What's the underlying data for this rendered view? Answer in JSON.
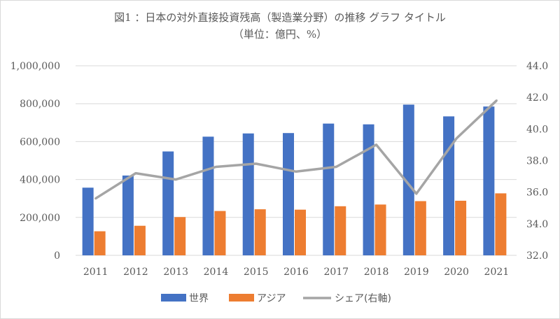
{
  "chart_data": {
    "type": "bar",
    "title": "図1 ：日本の対外直接投資残高（製造業分野）の推移 グラフ タイトル",
    "subtitle": "（単位：億円、%）",
    "categories": [
      "2011",
      "2012",
      "2013",
      "2014",
      "2015",
      "2016",
      "2017",
      "2018",
      "2019",
      "2020",
      "2021"
    ],
    "series": [
      {
        "name": "世界",
        "kind": "bar",
        "axis": "left",
        "color": "#4472c4",
        "values": [
          357000,
          421000,
          548000,
          626000,
          643000,
          645000,
          695000,
          691000,
          795000,
          733000,
          785000
        ]
      },
      {
        "name": "アジア",
        "kind": "bar",
        "axis": "left",
        "color": "#ed7d31",
        "values": [
          127000,
          156000,
          202000,
          234000,
          243000,
          241000,
          259000,
          268000,
          286000,
          288000,
          327000
        ]
      },
      {
        "name": "シェア(右軸)",
        "kind": "line",
        "axis": "right",
        "color": "#a5a5a5",
        "values": [
          35.6,
          37.2,
          36.8,
          37.6,
          37.8,
          37.3,
          37.6,
          39.0,
          35.9,
          39.4,
          41.8
        ]
      }
    ],
    "left_axis": {
      "ylim": [
        0,
        1000000
      ],
      "ticks": [
        "0",
        "200,000",
        "400,000",
        "600,000",
        "800,000",
        "1,000,000"
      ],
      "tick_values": [
        0,
        200000,
        400000,
        600000,
        800000,
        1000000
      ]
    },
    "right_axis": {
      "ylim": [
        32,
        44
      ],
      "ticks": [
        "32.0",
        "34.0",
        "36.0",
        "38.0",
        "40.0",
        "42.0",
        "44.0"
      ],
      "tick_values": [
        32,
        34,
        36,
        38,
        40,
        42,
        44
      ]
    },
    "grid": true,
    "legend_position": "bottom"
  }
}
